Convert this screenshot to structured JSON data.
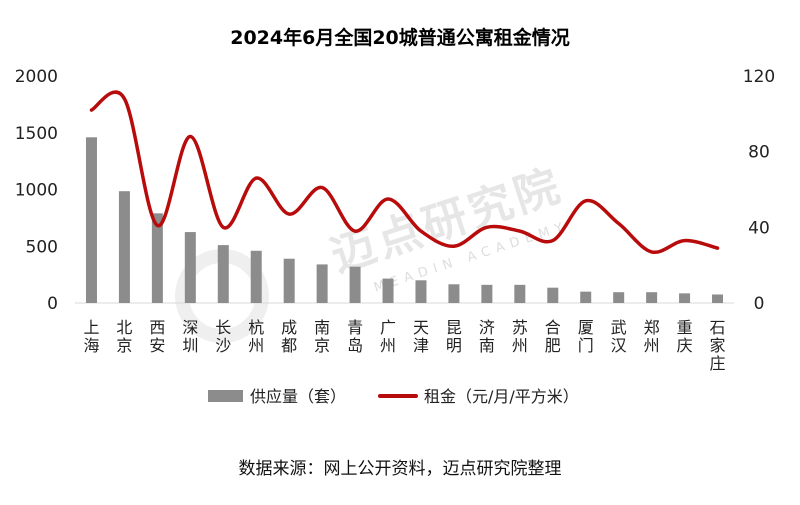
{
  "chart_data": {
    "type": "bar+line",
    "title": "2024年6月全国20城普通公寓租金情况",
    "categories": [
      "上海",
      "北京",
      "西安",
      "深圳",
      "长沙",
      "杭州",
      "成都",
      "南京",
      "青岛",
      "广州",
      "天津",
      "昆明",
      "济南",
      "苏州",
      "合肥",
      "厦门",
      "武汉",
      "郑州",
      "重庆",
      "石家庄"
    ],
    "series": [
      {
        "name": "供应量（套）",
        "type": "bar",
        "axis": "left",
        "color": "#8c8c8c",
        "values": [
          1460,
          985,
          790,
          625,
          510,
          460,
          390,
          340,
          320,
          215,
          200,
          165,
          160,
          160,
          135,
          100,
          95,
          95,
          85,
          75
        ]
      },
      {
        "name": "租金（元/月/平方米）",
        "type": "line",
        "axis": "right",
        "color": "#b80c0c",
        "values": [
          102,
          108,
          41,
          88,
          40,
          66,
          47,
          61,
          38,
          55,
          38,
          30,
          40,
          38,
          33,
          54,
          42,
          27,
          33,
          29
        ]
      }
    ],
    "y_left": {
      "ticks": [
        "0",
        "500",
        "1000",
        "1500",
        "2000"
      ],
      "range": [
        0,
        2000
      ]
    },
    "y_right": {
      "ticks": [
        "0",
        "40",
        "80",
        "120"
      ],
      "range": [
        0,
        120
      ]
    },
    "legend_position": "bottom",
    "grid": false
  },
  "watermark": {
    "main": "迈点研究院",
    "sub": "MEADIN ACADEMY"
  },
  "source_text": "数据来源：网上公开资料，迈点研究院整理"
}
